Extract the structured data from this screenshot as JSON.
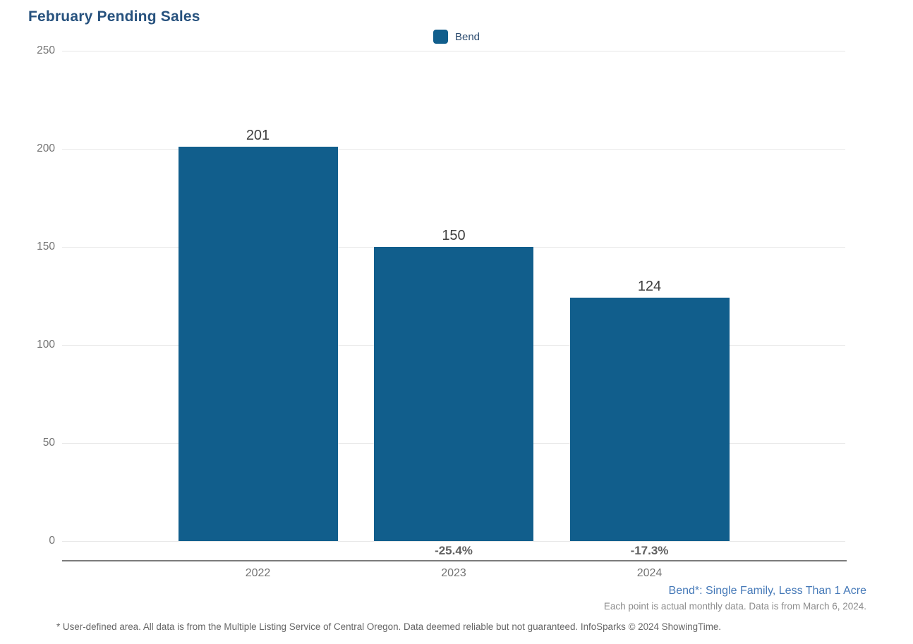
{
  "title": "February Pending Sales",
  "legend": {
    "label": "Bend",
    "swatch_color": "#115E8C"
  },
  "chart_data": {
    "type": "bar",
    "title": "February Pending Sales",
    "categories": [
      "2022",
      "2023",
      "2024"
    ],
    "series": [
      {
        "name": "Bend",
        "values": [
          201,
          150,
          124
        ],
        "color": "#115E8C"
      }
    ],
    "value_labels": [
      "201",
      "150",
      "124"
    ],
    "pct_change_labels": [
      "",
      "-25.4%",
      "-17.3%"
    ],
    "xlabel": "",
    "ylabel": "",
    "ylim": [
      0,
      250
    ],
    "yticks": [
      0,
      50,
      100,
      150,
      200,
      250
    ],
    "grid": true,
    "legend_position": "top-center"
  },
  "annotations": {
    "series_note": "Bend*: Single Family, Less Than 1 Acre",
    "data_note": "Each point is actual monthly data. Data is from March 6, 2024.",
    "footer": "* User-defined area. All data is from the Multiple Listing Service of Central Oregon. Data deemed reliable but not guaranteed. InfoSparks © 2024 ShowingTime."
  },
  "colors": {
    "bar": "#115E8C",
    "title_text": "#27527E",
    "legend_text": "#2B4B6F",
    "series_note_text": "#4579B8",
    "value_label_text": "#3F3F3F",
    "pct_label_text": "#606060",
    "axis_label_text": "#747474",
    "gridline": "#E7E7E7",
    "axis_line": "#7B7B7B",
    "data_note_text": "#8C8C8C",
    "footer_text": "#666666"
  }
}
